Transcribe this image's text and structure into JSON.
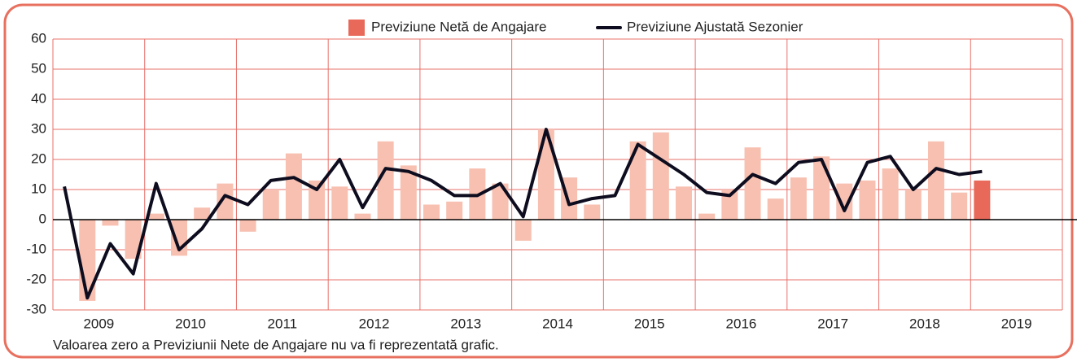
{
  "chart_data": {
    "type": "bar-line",
    "note": "Valoarea zero a Previziunii Nete de Angajare nu va fi reprezentată grafic.",
    "x_labels": [
      "2009",
      "2010",
      "2011",
      "2012",
      "2013",
      "2014",
      "2015",
      "2016",
      "2017",
      "2018",
      "2019"
    ],
    "series": [
      {
        "name": "Previziune Netă de Angajare",
        "type": "bar",
        "color": "#f7c0b1",
        "colors": [
          "#f7c0b1",
          "#f7c0b1",
          "#f7c0b1",
          "#f7c0b1",
          "#f7c0b1",
          "#f7c0b1",
          "#f7c0b1",
          "#f7c0b1",
          "#f7c0b1",
          "#f7c0b1",
          "#f7c0b1",
          "#f7c0b1",
          "#f7c0b1",
          "#f7c0b1",
          "#f7c0b1",
          "#f7c0b1",
          "#f7c0b1",
          "#f7c0b1",
          "#f7c0b1",
          "#f7c0b1",
          "#f7c0b1",
          "#f7c0b1",
          "#f7c0b1",
          "#f7c0b1",
          "#f7c0b1",
          "#f7c0b1",
          "#f7c0b1",
          "#f7c0b1",
          "#f7c0b1",
          "#f7c0b1",
          "#f7c0b1",
          "#f7c0b1",
          "#f7c0b1",
          "#f7c0b1",
          "#f7c0b1",
          "#f7c0b1",
          "#f7c0b1",
          "#f7c0b1",
          "#f7c0b1",
          "#f7c0b1",
          "#e8695a"
        ],
        "values": [
          null,
          -27,
          -2,
          -13,
          2,
          -12,
          4,
          12,
          -4,
          10,
          22,
          13,
          11,
          2,
          26,
          18,
          5,
          6,
          17,
          12,
          -7,
          30,
          14,
          5,
          0,
          26,
          29,
          11,
          2,
          10,
          24,
          7,
          14,
          21,
          12,
          13,
          17,
          10,
          26,
          9,
          13
        ]
      },
      {
        "name": "Previziune Ajustată Sezonier",
        "type": "line",
        "color": "#0d0d1f",
        "values": [
          11,
          -26,
          -8,
          -18,
          12,
          -10,
          -3,
          8,
          5,
          13,
          14,
          10,
          20,
          4,
          17,
          16,
          13,
          8,
          8,
          12,
          1,
          30,
          5,
          7,
          8,
          25,
          20,
          15,
          9,
          8,
          15,
          12,
          19,
          20,
          3,
          19,
          21,
          10,
          17,
          15,
          16
        ]
      }
    ],
    "ylim": [
      -30,
      60
    ],
    "yticks": [
      -30,
      -20,
      -10,
      0,
      10,
      20,
      30,
      40,
      50,
      60
    ],
    "grid": true,
    "grid_color": "#e8706a",
    "frame_color": "#e8705f"
  }
}
